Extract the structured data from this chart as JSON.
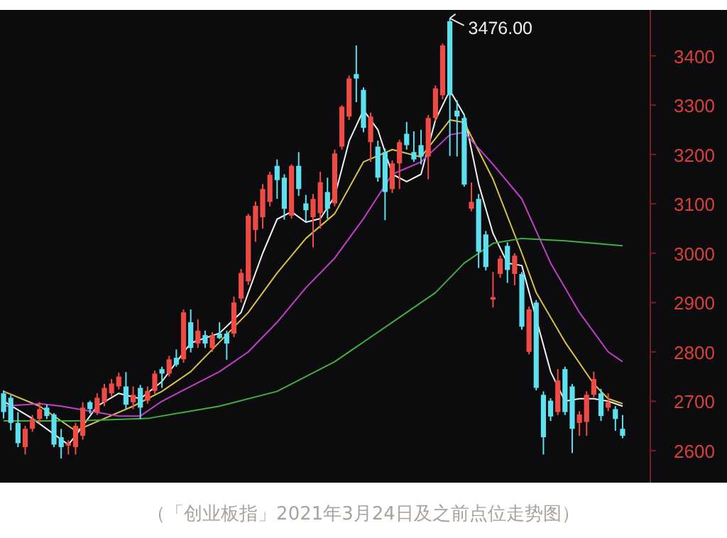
{
  "chart_data": {
    "type": "candlestick",
    "categories": [
      null,
      null,
      null,
      null,
      null,
      null,
      null,
      null,
      null,
      null,
      null,
      null,
      null,
      null,
      null,
      null,
      null,
      null,
      null,
      null,
      null,
      null,
      null,
      null,
      null,
      null,
      null,
      null,
      null,
      null,
      null,
      null,
      null,
      null,
      null,
      null,
      null,
      null,
      null,
      null,
      null,
      null,
      null,
      null,
      null,
      null,
      null,
      null,
      null,
      null,
      null,
      null,
      null,
      null,
      null,
      null,
      null,
      null,
      null,
      null,
      null,
      null,
      null,
      null,
      null,
      null,
      null,
      null,
      null,
      null,
      null,
      null,
      null,
      null,
      null,
      null,
      null,
      null,
      null,
      null,
      null,
      null,
      null,
      null,
      null,
      null,
      null
    ],
    "ohlc": [
      [
        2716,
        2722,
        2665,
        2678
      ],
      [
        2707,
        2712,
        2641,
        2656
      ],
      [
        2656,
        2678,
        2607,
        2615
      ],
      [
        2607,
        2650,
        2592,
        2644
      ],
      [
        2644,
        2672,
        2638,
        2664
      ],
      [
        2664,
        2698,
        2655,
        2684
      ],
      [
        2687,
        2693,
        2664,
        2670
      ],
      [
        2673,
        2676,
        2607,
        2612
      ],
      [
        2627,
        2644,
        2584,
        2607
      ],
      [
        2610,
        2621,
        2592,
        2615
      ],
      [
        2607,
        2656,
        2592,
        2650
      ],
      [
        2630,
        2698,
        2622,
        2687
      ],
      [
        2698,
        2701,
        2675,
        2684
      ],
      [
        2678,
        2716,
        2672,
        2707
      ],
      [
        2698,
        2735,
        2690,
        2727
      ],
      [
        2716,
        2745,
        2710,
        2736
      ],
      [
        2730,
        2758,
        2724,
        2750
      ],
      [
        2730,
        2759,
        2685,
        2693
      ],
      [
        2698,
        2730,
        2684,
        2713
      ],
      [
        2727,
        2733,
        2664,
        2687
      ],
      [
        2701,
        2730,
        2695,
        2721
      ],
      [
        2721,
        2762,
        2715,
        2756
      ],
      [
        2765,
        2770,
        2727,
        2756
      ],
      [
        2756,
        2792,
        2750,
        2785
      ],
      [
        2788,
        2805,
        2770,
        2774
      ],
      [
        2785,
        2886,
        2778,
        2880
      ],
      [
        2860,
        2886,
        2799,
        2808
      ],
      [
        2817,
        2866,
        2808,
        2843
      ],
      [
        2834,
        2843,
        2808,
        2817
      ],
      [
        2808,
        2840,
        2800,
        2834
      ],
      [
        2837,
        2860,
        2826,
        2828
      ],
      [
        2837,
        2843,
        2784,
        2817
      ],
      [
        2837,
        2912,
        2830,
        2900
      ],
      [
        2908,
        2968,
        2900,
        2960
      ],
      [
        2943,
        3080,
        2936,
        3076
      ],
      [
        3047,
        3105,
        3023,
        3096
      ],
      [
        3073,
        3140,
        3050,
        3130
      ],
      [
        3104,
        3165,
        3095,
        3159
      ],
      [
        3177,
        3190,
        3110,
        3148
      ],
      [
        3153,
        3160,
        3068,
        3090
      ],
      [
        3076,
        3180,
        3070,
        3177
      ],
      [
        3177,
        3205,
        3116,
        3130
      ],
      [
        3101,
        3118,
        3064,
        3087
      ],
      [
        3073,
        3120,
        3012,
        3110
      ],
      [
        3081,
        3165,
        3050,
        3144
      ],
      [
        3124,
        3153,
        3070,
        3090
      ],
      [
        3101,
        3210,
        3095,
        3202
      ],
      [
        3216,
        3300,
        3210,
        3297
      ],
      [
        3277,
        3360,
        3270,
        3354
      ],
      [
        3363,
        3421,
        3306,
        3354
      ],
      [
        3331,
        3336,
        3245,
        3254
      ],
      [
        3225,
        3285,
        3185,
        3277
      ],
      [
        3216,
        3228,
        3145,
        3153
      ],
      [
        3205,
        3212,
        3067,
        3124
      ],
      [
        3130,
        3188,
        3122,
        3182
      ],
      [
        3182,
        3230,
        3130,
        3225
      ],
      [
        3242,
        3266,
        3210,
        3219
      ],
      [
        3205,
        3247,
        3185,
        3190
      ],
      [
        3219,
        3250,
        3180,
        3196
      ],
      [
        3196,
        3280,
        3150,
        3274
      ],
      [
        3274,
        3340,
        3268,
        3334
      ],
      [
        3320,
        3425,
        3312,
        3421
      ],
      [
        3470,
        3476,
        3197,
        3320
      ],
      [
        3289,
        3310,
        3196,
        3277
      ],
      [
        3274,
        3280,
        3135,
        3139
      ],
      [
        3090,
        3143,
        3085,
        3104
      ],
      [
        3110,
        3120,
        2970,
        3003
      ],
      [
        3038,
        3045,
        2965,
        2972
      ],
      [
        2906,
        2962,
        2890,
        2911
      ],
      [
        2958,
        2995,
        2950,
        2989
      ],
      [
        3015,
        3022,
        2940,
        2966
      ],
      [
        2958,
        3000,
        2935,
        2995
      ],
      [
        2958,
        2962,
        2845,
        2851
      ],
      [
        2800,
        2892,
        2795,
        2886
      ],
      [
        2900,
        2905,
        2722,
        2727
      ],
      [
        2713,
        2720,
        2592,
        2627
      ],
      [
        2701,
        2706,
        2660,
        2669
      ],
      [
        2678,
        2765,
        2672,
        2742
      ],
      [
        2765,
        2770,
        2672,
        2678
      ],
      [
        2730,
        2735,
        2595,
        2644
      ],
      [
        2656,
        2680,
        2630,
        2673
      ],
      [
        2658,
        2720,
        2630,
        2713
      ],
      [
        2713,
        2760,
        2708,
        2745
      ],
      [
        2716,
        2725,
        2660,
        2670
      ],
      [
        2687,
        2716,
        2680,
        2698
      ],
      [
        2684,
        2690,
        2640,
        2664
      ],
      [
        2644,
        2672,
        2625,
        2630
      ]
    ],
    "colors": [
      "#5ee0ee",
      "#5ee0ee",
      "#5ee0ee",
      "#ef4b45",
      "#ef4b45",
      "#ef4b45",
      "#5ee0ee",
      "#5ee0ee",
      "#5ee0ee",
      "#ef4b45",
      "#ef4b45",
      "#ef4b45",
      "#5ee0ee",
      "#ef4b45",
      "#ef4b45",
      "#ef4b45",
      "#ef4b45",
      "#5ee0ee",
      "#ef4b45",
      "#5ee0ee",
      "#ef4b45",
      "#ef4b45",
      "#5ee0ee",
      "#ef4b45",
      "#5ee0ee",
      "#ef4b45",
      "#5ee0ee",
      "#ef4b45",
      "#5ee0ee",
      "#ef4b45",
      "#5ee0ee",
      "#5ee0ee",
      "#ef4b45",
      "#ef4b45",
      "#ef4b45",
      "#ef4b45",
      "#ef4b45",
      "#ef4b45",
      "#5ee0ee",
      "#5ee0ee",
      "#ef4b45",
      "#5ee0ee",
      "#5ee0ee",
      "#ef4b45",
      "#ef4b45",
      "#5ee0ee",
      "#ef4b45",
      "#ef4b45",
      "#ef4b45",
      "#5ee0ee",
      "#5ee0ee",
      "#ef4b45",
      "#5ee0ee",
      "#5ee0ee",
      "#ef4b45",
      "#ef4b45",
      "#5ee0ee",
      "#5ee0ee",
      "#5ee0ee",
      "#ef4b45",
      "#ef4b45",
      "#ef4b45",
      "#5ee0ee",
      "#5ee0ee",
      "#5ee0ee",
      "#ef4b45",
      "#5ee0ee",
      "#5ee0ee",
      "#ef4b45",
      "#ef4b45",
      "#5ee0ee",
      "#ef4b45",
      "#5ee0ee",
      "#ef4b45",
      "#5ee0ee",
      "#5ee0ee",
      "#5ee0ee",
      "#ef4b45",
      "#5ee0ee",
      "#5ee0ee",
      "#ef4b45",
      "#ef4b45",
      "#ef4b45",
      "#5ee0ee",
      "#ef4b45",
      "#5ee0ee",
      "#5ee0ee"
    ],
    "series": [
      {
        "type": "line",
        "color": "#f2f2f2",
        "values": [
          2700,
          null,
          null,
          null,
          2665,
          null,
          null,
          null,
          null,
          2612,
          2630,
          null,
          null,
          2690,
          null,
          null,
          2716,
          null,
          null,
          2705,
          null,
          null,
          2740,
          null,
          null,
          null,
          2818,
          null,
          null,
          null,
          2838,
          null,
          null,
          2880,
          null,
          null,
          3000,
          null,
          3069,
          null,
          3084,
          null,
          3063,
          null,
          3070,
          null,
          3115,
          null,
          3227,
          null,
          3290,
          null,
          3250,
          null,
          3160,
          null,
          3145,
          null,
          3160,
          null,
          3270,
          null,
          3330,
          null,
          3280,
          null,
          3140,
          null,
          3040,
          null,
          2980,
          null,
          2975,
          null,
          null,
          null,
          2760,
          null,
          2700,
          null,
          2705,
          null,
          2705,
          null,
          2700,
          null,
          2690
        ]
      },
      {
        "type": "line",
        "color": "#d9c24a",
        "values": [
          2720,
          null,
          null,
          null,
          null,
          2690,
          null,
          null,
          null,
          null,
          2640,
          null,
          null,
          null,
          2665,
          null,
          null,
          null,
          2690,
          null,
          null,
          null,
          2720,
          null,
          null,
          null,
          2760,
          null,
          null,
          null,
          2820,
          null,
          null,
          null,
          2880,
          null,
          null,
          null,
          2960,
          null,
          null,
          null,
          3030,
          null,
          null,
          null,
          3080,
          null,
          null,
          null,
          3185,
          null,
          null,
          null,
          3210,
          null,
          null,
          null,
          3195,
          null,
          null,
          null,
          3270,
          null,
          3265,
          null,
          null,
          null,
          3150,
          null,
          null,
          null,
          3000,
          null,
          2920,
          null,
          null,
          null,
          2820,
          null,
          null,
          null,
          2735,
          null,
          2705,
          null,
          2695
        ]
      },
      {
        "type": "line",
        "color": "#c23fc9",
        "values": [
          2690,
          null,
          null,
          null,
          null,
          2695,
          null,
          null,
          2690,
          null,
          null,
          null,
          2680,
          null,
          null,
          null,
          2670,
          null,
          null,
          2670,
          null,
          null,
          2700,
          null,
          null,
          null,
          2730,
          null,
          null,
          null,
          2760,
          null,
          null,
          null,
          2800,
          null,
          null,
          null,
          2860,
          null,
          null,
          null,
          2930,
          null,
          null,
          null,
          2990,
          null,
          null,
          null,
          3070,
          null,
          null,
          null,
          3160,
          null,
          null,
          null,
          3185,
          null,
          null,
          null,
          3240,
          null,
          3245,
          null,
          null,
          null,
          3180,
          null,
          null,
          null,
          3110,
          null,
          null,
          null,
          2980,
          null,
          null,
          null,
          2880,
          null,
          null,
          null,
          2800,
          null,
          2780
        ]
      },
      {
        "type": "line",
        "color": "#3faf3f",
        "values": [
          2660,
          null,
          null,
          null,
          null,
          null,
          null,
          null,
          null,
          null,
          2660,
          null,
          null,
          null,
          null,
          null,
          null,
          null,
          null,
          null,
          2665,
          null,
          null,
          null,
          null,
          null,
          null,
          null,
          null,
          null,
          2690,
          null,
          null,
          null,
          null,
          null,
          null,
          null,
          2720,
          null,
          null,
          null,
          null,
          null,
          null,
          null,
          2780,
          null,
          null,
          null,
          null,
          null,
          null,
          null,
          2860,
          null,
          null,
          null,
          null,
          null,
          2920,
          null,
          null,
          null,
          2980,
          null,
          null,
          null,
          3020,
          null,
          null,
          null,
          3030,
          null,
          null,
          null,
          null,
          null,
          3025,
          null,
          null,
          null,
          null,
          null,
          null,
          null,
          3015
        ]
      }
    ],
    "ylim": [
      2535,
      3493
    ],
    "yticks": [
      2600,
      2700,
      2800,
      2900,
      3000,
      3100,
      3200,
      3300,
      3400
    ],
    "title": "（「创业板指」2021年3月24日及之前点位走势图）",
    "annotations": [
      "3476.00"
    ]
  }
}
